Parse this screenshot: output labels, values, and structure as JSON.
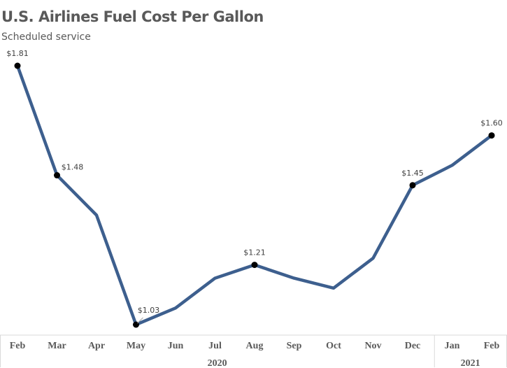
{
  "chart_data": {
    "type": "line",
    "title": "U.S. Airlines Fuel Cost Per Gallon",
    "subtitle": "Scheduled service",
    "categories": [
      "Feb",
      "Mar",
      "Apr",
      "May",
      "Jun",
      "Jul",
      "Aug",
      "Sep",
      "Oct",
      "Nov",
      "Dec",
      "Jan",
      "Feb"
    ],
    "year_groups": [
      {
        "label": "2020",
        "start": 0,
        "end": 10
      },
      {
        "label": "2021",
        "start": 11,
        "end": 12
      }
    ],
    "series": [
      {
        "values": [
          1.81,
          1.48,
          1.36,
          1.03,
          1.08,
          1.17,
          1.21,
          1.17,
          1.14,
          1.23,
          1.45,
          1.51,
          1.6
        ]
      }
    ],
    "data_labels": [
      {
        "index": 0,
        "text": "$1.81"
      },
      {
        "index": 1,
        "text": "$1.48"
      },
      {
        "index": 3,
        "text": "$1.03"
      },
      {
        "index": 6,
        "text": "$1.21"
      },
      {
        "index": 10,
        "text": "$1.45"
      },
      {
        "index": 12,
        "text": "$1.60"
      }
    ],
    "ylim": [
      1.0,
      1.85
    ],
    "grid": false,
    "legend": "none",
    "line_color": "#3d5f8e",
    "marker_color": "#000000",
    "axis_color": "#d9d9d9"
  }
}
